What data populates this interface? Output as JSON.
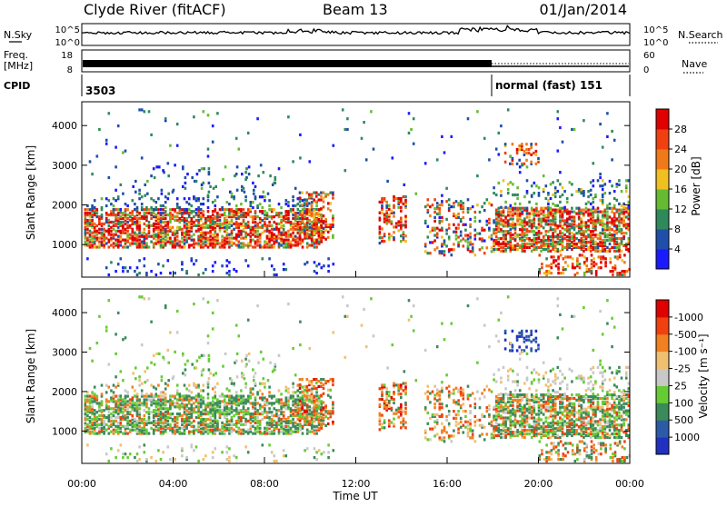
{
  "header": {
    "station": "Clyde River (fitACF)",
    "beam": "Beam 13",
    "date": "01/Jan/2014"
  },
  "nsky_panel": {
    "left_label": "N.Sky",
    "right_label": "N.Search",
    "left_ticks": [
      "10^5",
      "10^0"
    ],
    "right_ticks": [
      "10^5",
      "10^0"
    ]
  },
  "freq_panel": {
    "left_label_1": "Freq.",
    "left_label_2": "[MHz]",
    "right_label": "Nave",
    "left_ticks": [
      "18",
      "8"
    ],
    "right_ticks": [
      "60",
      "0"
    ]
  },
  "cpid_panel": {
    "label": "CPID",
    "segments": [
      {
        "text": "3503",
        "start_hour": 0
      },
      {
        "text": "normal (fast) 151",
        "start_hour": 18
      }
    ]
  },
  "chart_data": [
    {
      "type": "heatmap",
      "name": "power",
      "ylabel": "Slant Range [km]",
      "x_range_hours": [
        0,
        24
      ],
      "y_range_km": [
        180,
        4600
      ],
      "y_ticks": [
        1000,
        2000,
        3000,
        4000
      ],
      "colorbar": {
        "label": "Power [dB]",
        "tick_labels": [
          "4",
          "8",
          "12",
          "16",
          "20",
          "24",
          "28"
        ],
        "colors": [
          "#1a1aff",
          "#1f4fa8",
          "#2e8a5a",
          "#66bb33",
          "#f0c020",
          "#f07a1a",
          "#f04010",
          "#e00000"
        ]
      }
    },
    {
      "type": "heatmap",
      "name": "velocity",
      "ylabel": "Slant Range [km]",
      "xlabel": "Time UT",
      "x_range_hours": [
        0,
        24
      ],
      "y_range_km": [
        180,
        4600
      ],
      "y_ticks": [
        1000,
        2000,
        3000,
        4000
      ],
      "x_tick_labels": [
        "00:00",
        "04:00",
        "08:00",
        "12:00",
        "16:00",
        "20:00",
        "00:00"
      ],
      "colorbar": {
        "label": "Velocity [m s⁻¹]",
        "tick_labels": [
          "1000",
          "500",
          "100",
          "25",
          "-25",
          "-100",
          "-500",
          "-1000"
        ],
        "colors": [
          "#2030c0",
          "#2a5aa8",
          "#3a8a5a",
          "#66cc33",
          "#c8c8c8",
          "#f0c070",
          "#f08020",
          "#f04010",
          "#e00000"
        ]
      }
    }
  ]
}
